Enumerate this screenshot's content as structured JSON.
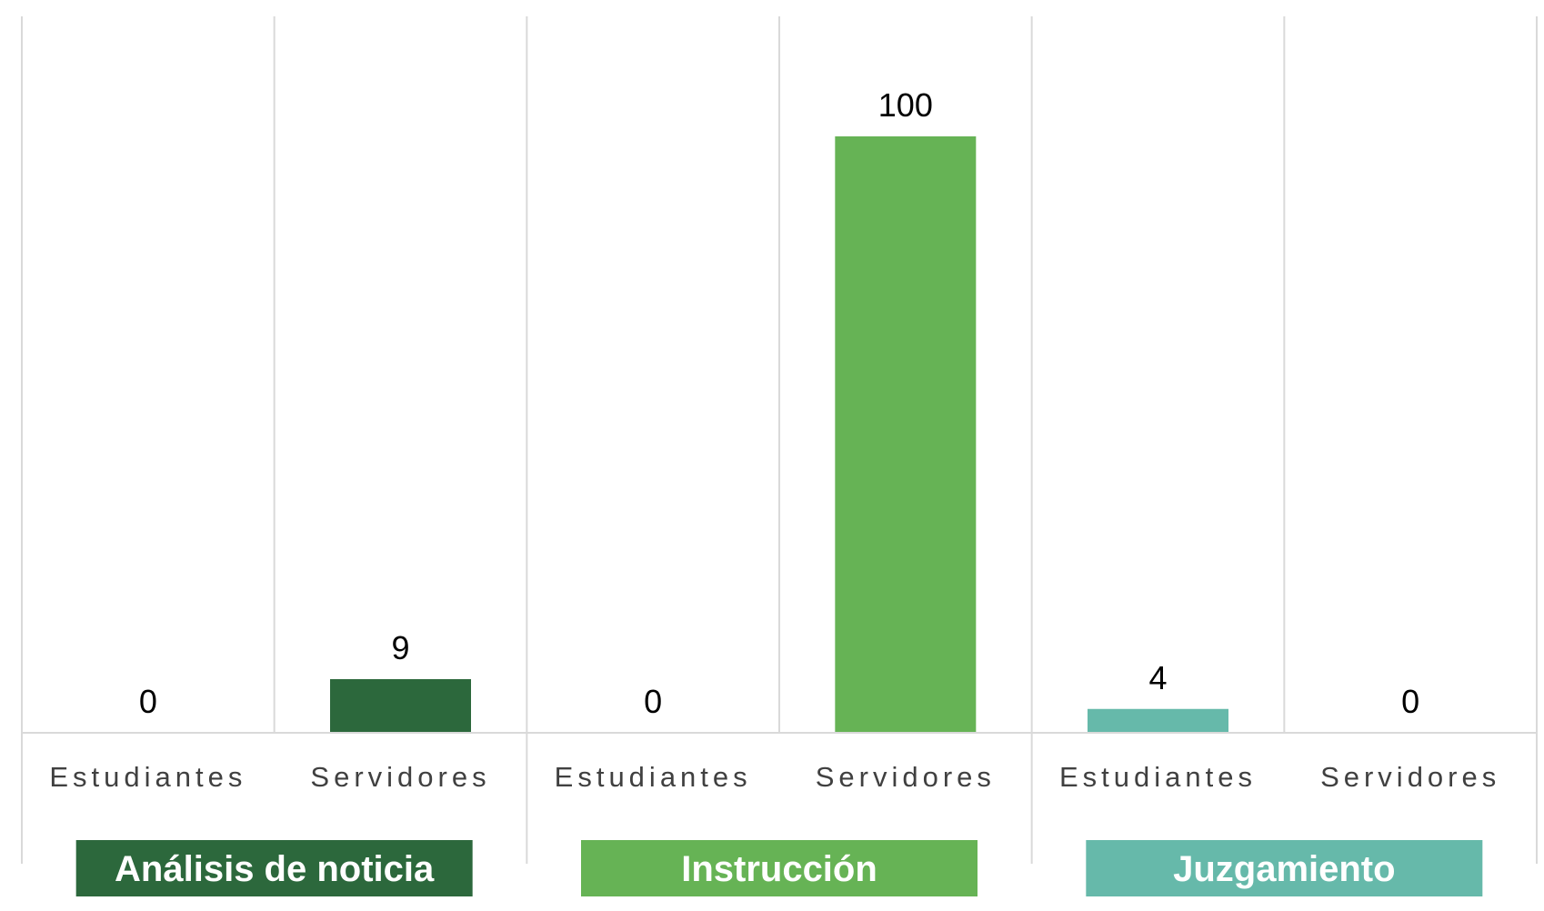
{
  "chart_data": {
    "type": "bar",
    "groups": [
      {
        "name": "Análisis de noticia",
        "color": "#2c683c",
        "categories": [
          "Estudiantes",
          "Servidores"
        ],
        "values": [
          0,
          9
        ]
      },
      {
        "name": "Instrucción",
        "color": "#66b355",
        "categories": [
          "Estudiantes",
          "Servidores"
        ],
        "values": [
          0,
          100
        ]
      },
      {
        "name": "Juzgamiento",
        "color": "#66b9aa",
        "categories": [
          "Estudiantes",
          "Servidores"
        ],
        "values": [
          4,
          0
        ]
      }
    ],
    "ylim": [
      0,
      100
    ],
    "title": "",
    "xlabel": "",
    "ylabel": "",
    "grid": false,
    "legend": "none"
  }
}
